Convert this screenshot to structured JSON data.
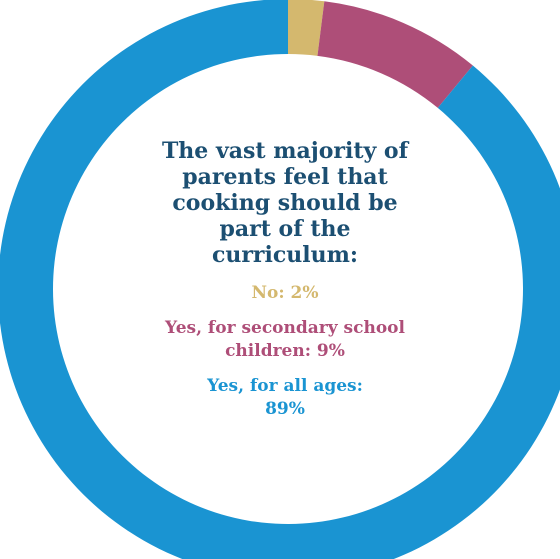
{
  "chart_data": {
    "type": "pie",
    "style": "donut",
    "title": "The vast majority of parents feel that cooking should be part of the curriculum:",
    "slices": [
      {
        "key": "no",
        "label": "No: 2%",
        "value": 2,
        "color": "#d4b86e"
      },
      {
        "key": "secondary",
        "label": "Yes, for secondary school children: 9%",
        "value": 9,
        "color": "#ae4e78"
      },
      {
        "key": "all",
        "label": "Yes, for all ages: 89%",
        "value": 89,
        "color": "#1a94d2"
      }
    ],
    "start": "top, clockwise",
    "legend_placement": "center"
  },
  "colors": {
    "title": "#1c4f72",
    "background": "#ffffff"
  }
}
